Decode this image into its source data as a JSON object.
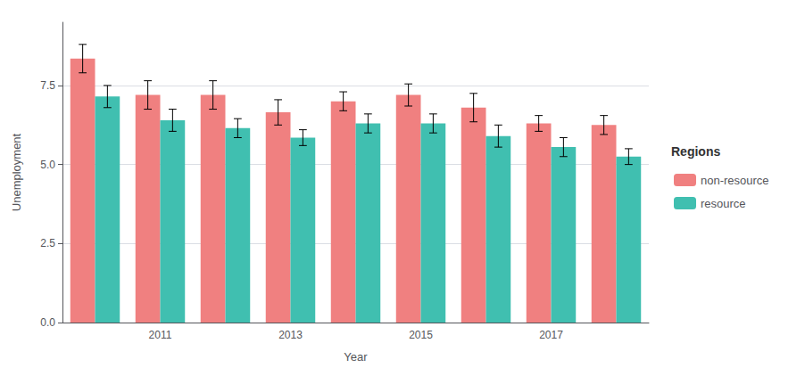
{
  "chart_data": {
    "type": "bar",
    "xlabel": "Year",
    "ylabel": "Unemployment",
    "categories": [
      null,
      "2011",
      null,
      "2013",
      null,
      "2015",
      null,
      "2017",
      null
    ],
    "series": [
      {
        "name": "non-resource",
        "color": "#F08080",
        "values": [
          8.35,
          7.2,
          7.2,
          6.65,
          7.0,
          7.2,
          6.8,
          6.3,
          6.25
        ],
        "errors": [
          0.45,
          0.45,
          0.45,
          0.4,
          0.3,
          0.35,
          0.45,
          0.25,
          0.3
        ]
      },
      {
        "name": "resource",
        "color": "#40BFB0",
        "values": [
          7.15,
          6.4,
          6.15,
          5.85,
          6.3,
          6.3,
          5.9,
          5.55,
          5.25
        ],
        "errors": [
          0.35,
          0.35,
          0.3,
          0.25,
          0.3,
          0.3,
          0.35,
          0.3,
          0.25
        ]
      }
    ],
    "legend_title": "Regions",
    "legend": "right",
    "ylim": [
      0,
      9.5
    ],
    "yticks": [
      {
        "value": 0,
        "label": "0.0"
      },
      2.5,
      {
        "value": 5,
        "label": "5.0"
      },
      7.5
    ],
    "grid": true
  }
}
